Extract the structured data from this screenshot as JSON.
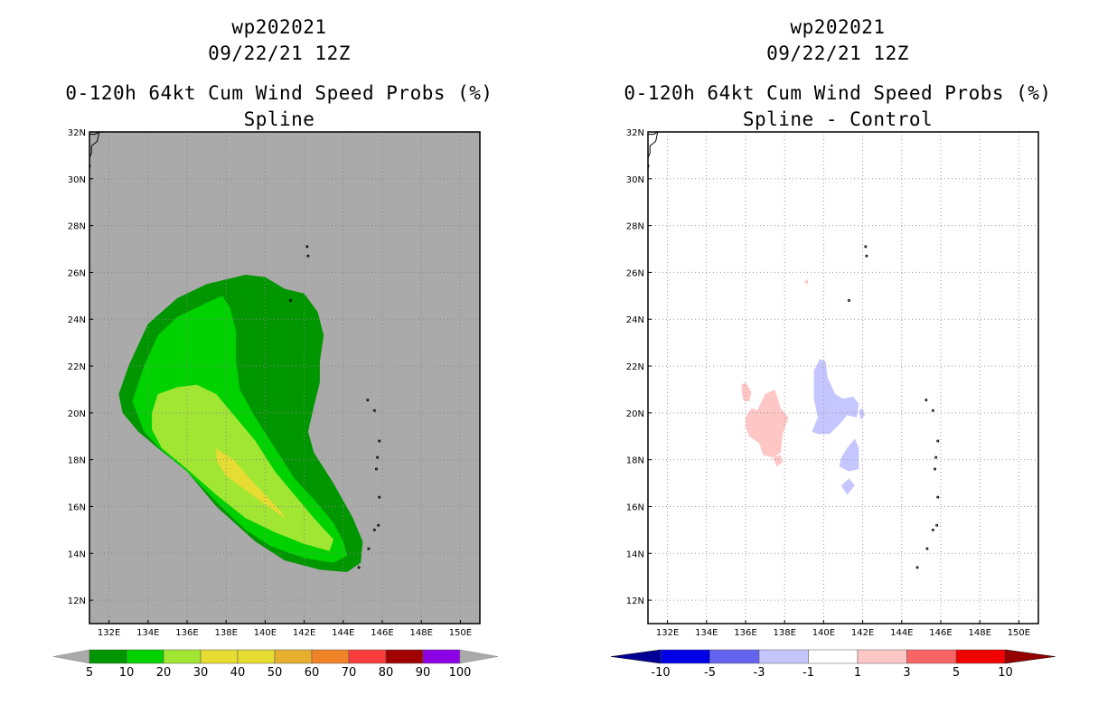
{
  "chart_data": [
    {
      "type": "contour-map",
      "storm_id": "wp202021",
      "datetime": "09/22/21 12Z",
      "title": "0-120h 64kt Cum Wind Speed Probs (%)",
      "subtitle": "Spline",
      "units": "%",
      "x_ticks": [
        "132E",
        "134E",
        "136E",
        "138E",
        "140E",
        "142E",
        "144E",
        "146E",
        "148E",
        "150E"
      ],
      "y_ticks": [
        "12N",
        "14N",
        "16N",
        "18N",
        "20N",
        "22N",
        "24N",
        "26N",
        "28N",
        "30N",
        "32N"
      ],
      "xlim": [
        131,
        151
      ],
      "ylim": [
        11,
        32
      ],
      "background": "#aaaaaa",
      "contour_levels": [
        5,
        10,
        20,
        30
      ],
      "contour_colors": [
        "#009600",
        "#00d200",
        "#a0e632",
        "#e6dc32"
      ],
      "colorbar": {
        "labels": [
          "5",
          "10",
          "20",
          "30",
          "40",
          "50",
          "60",
          "70",
          "80",
          "90",
          "100"
        ],
        "colors": [
          "#009600",
          "#00d200",
          "#a0e632",
          "#e6dc32",
          "#e6dc32",
          "#e6af2d",
          "#f08228",
          "#fa3c3c",
          "#a00000",
          "#8c00e6"
        ],
        "end_color": "#aaaaaa"
      }
    },
    {
      "type": "contour-map",
      "storm_id": "wp202021",
      "datetime": "09/22/21 12Z",
      "title": "0-120h 64kt Cum Wind Speed Probs (%)",
      "subtitle": "Spline - Control",
      "units": "%",
      "x_ticks": [
        "132E",
        "134E",
        "136E",
        "138E",
        "140E",
        "142E",
        "144E",
        "146E",
        "148E",
        "150E"
      ],
      "y_ticks": [
        "12N",
        "14N",
        "16N",
        "18N",
        "20N",
        "22N",
        "24N",
        "26N",
        "28N",
        "30N",
        "32N"
      ],
      "xlim": [
        131,
        151
      ],
      "ylim": [
        11,
        32
      ],
      "background": "#ffffff",
      "positive_color": "#ffc6c6",
      "negative_color": "#c6c6ff",
      "colorbar": {
        "labels": [
          "-10",
          "-5",
          "-3",
          "-1",
          "1",
          "3",
          "5",
          "10"
        ],
        "colors": [
          "#0000e6",
          "#6464f0",
          "#c6c6ff",
          "#ffffff",
          "#ffc6c6",
          "#fa6464",
          "#f00000"
        ],
        "left_end_color": "#000096",
        "right_end_color": "#960000"
      }
    }
  ]
}
